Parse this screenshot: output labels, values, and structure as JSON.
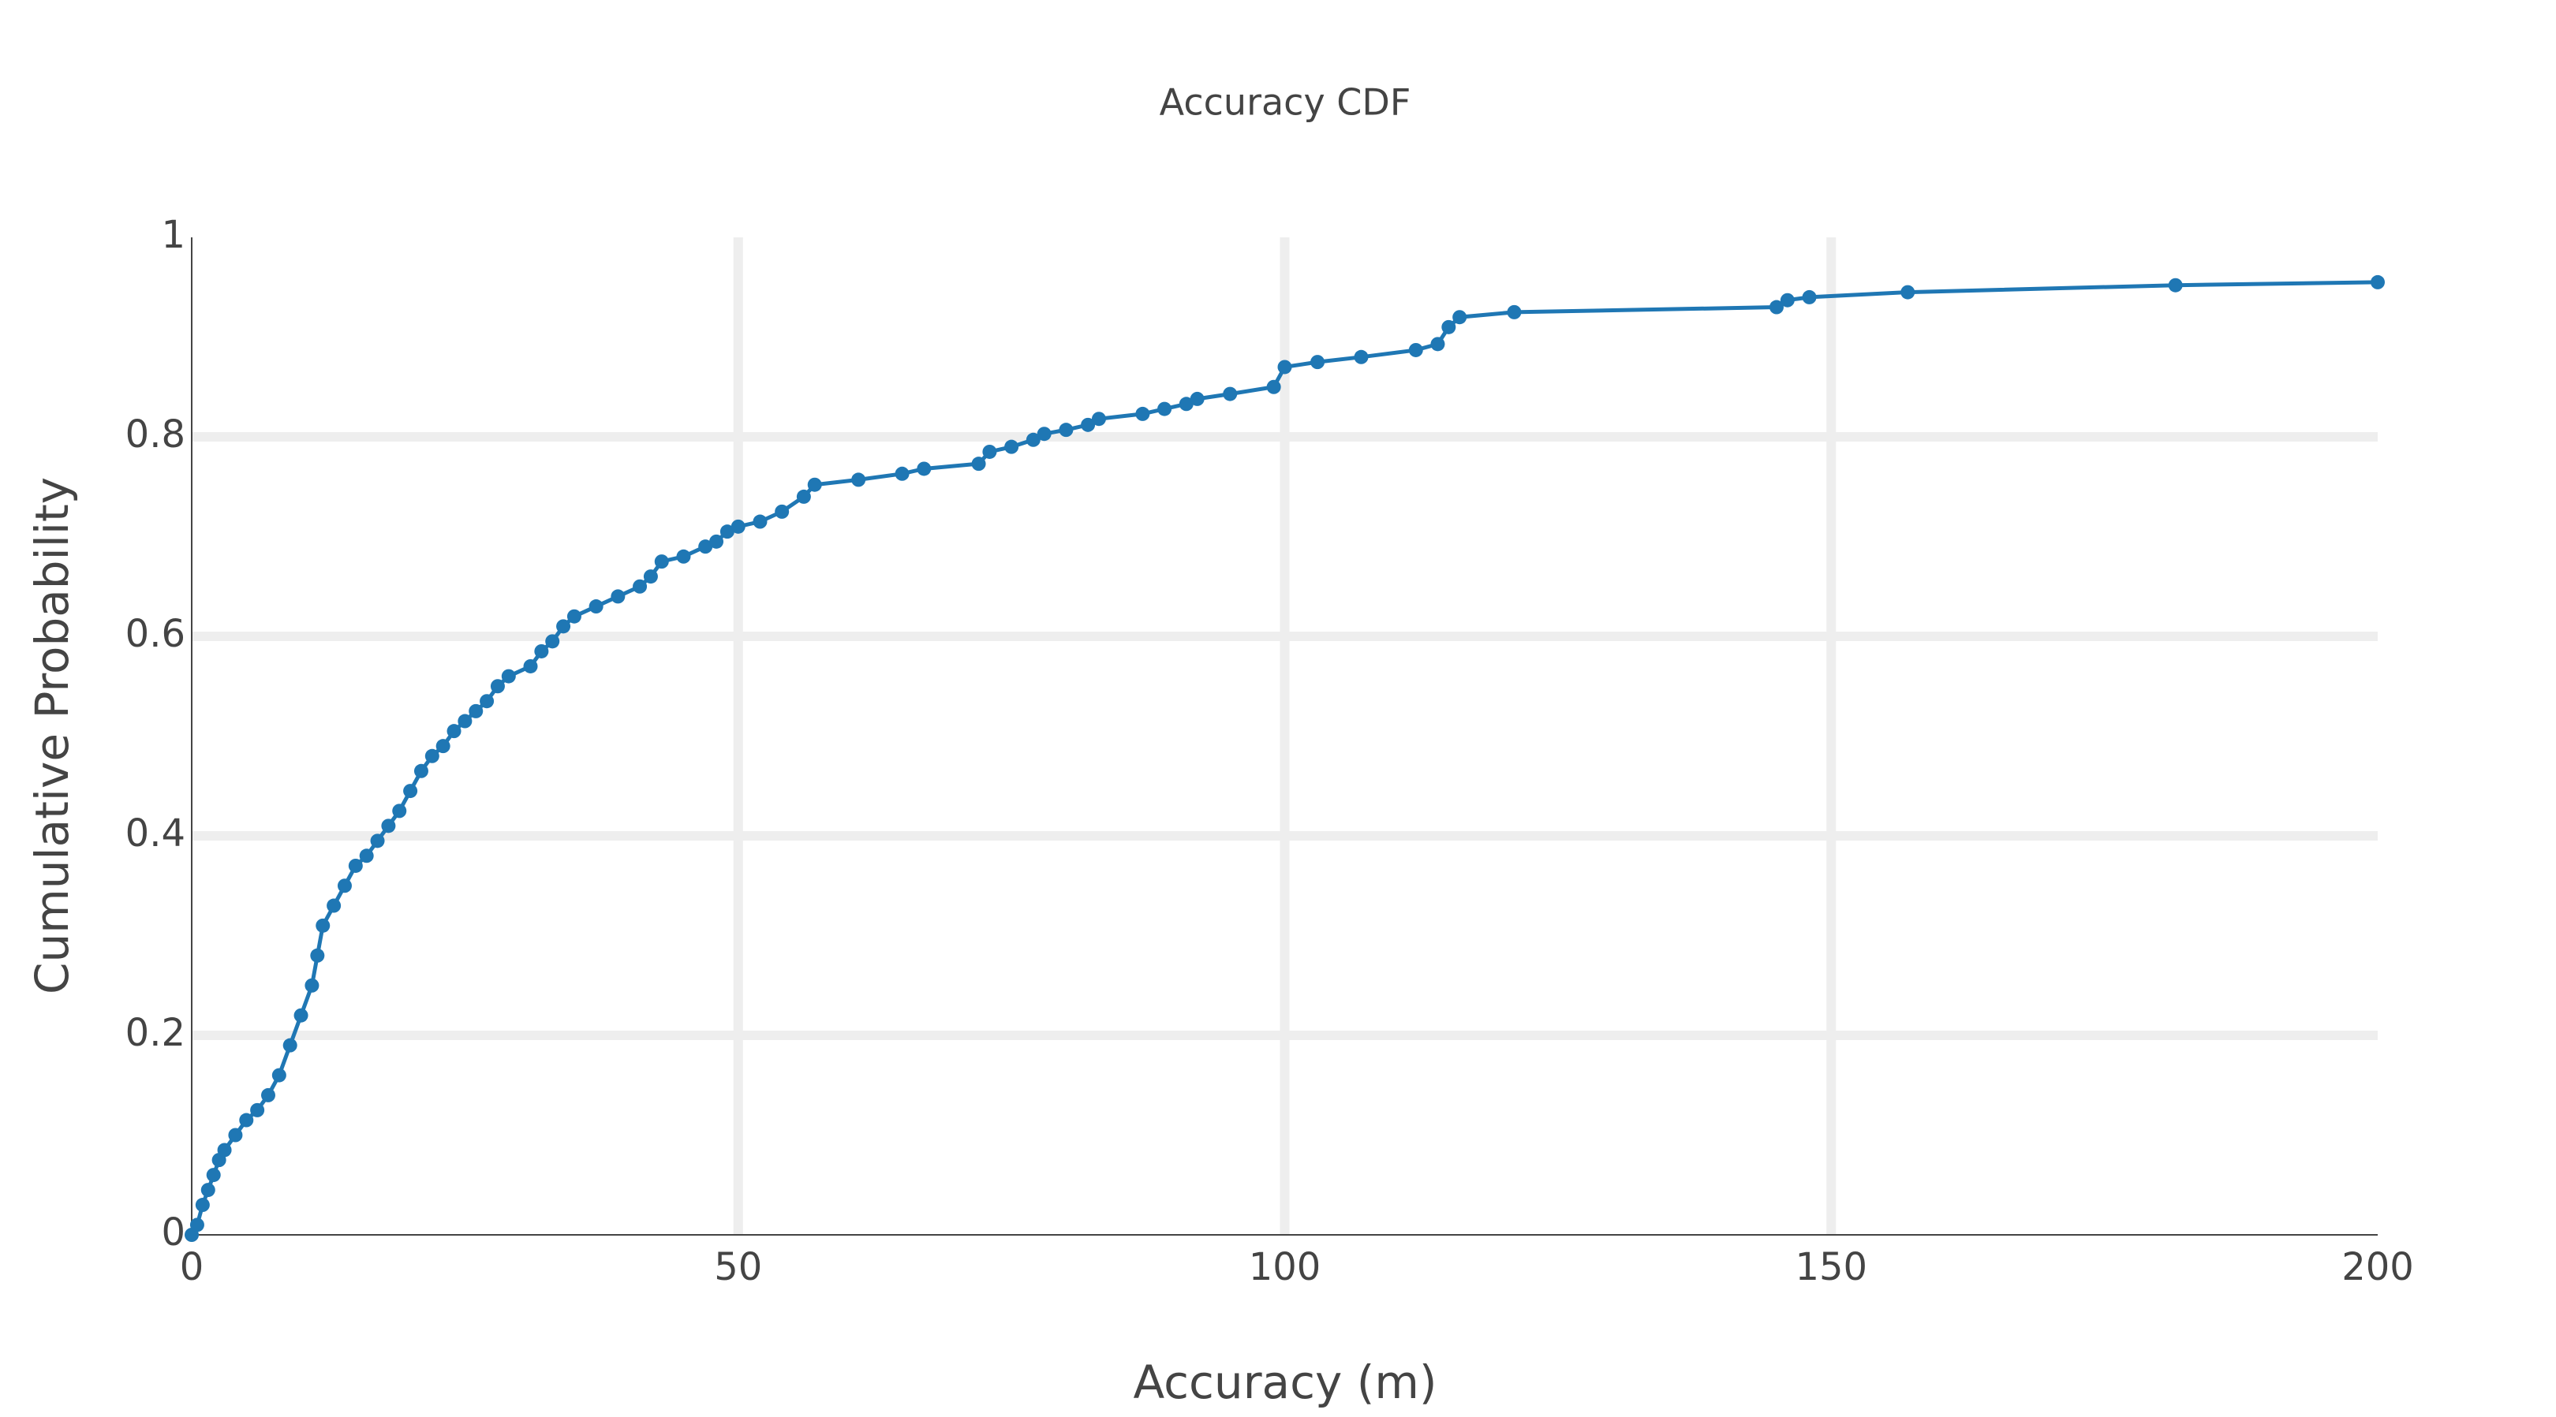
{
  "chart_data": {
    "type": "line",
    "title": "Accuracy CDF",
    "x_label": "Accuracy (m)",
    "y_label": "Cumulative Probability",
    "series": [
      {
        "color": "#1f77b4",
        "x": [
          0,
          0.5,
          1,
          1.5,
          2,
          2.5,
          3,
          4,
          5,
          6,
          7,
          8,
          9,
          10,
          11,
          11.5,
          12,
          13,
          14,
          15,
          16,
          17,
          18,
          19,
          20,
          21,
          22,
          23,
          24,
          25,
          26,
          27,
          28,
          29,
          31,
          32,
          33,
          34,
          35,
          37,
          39,
          41,
          42,
          43,
          45,
          47,
          48,
          49,
          50,
          52,
          54,
          56,
          57,
          61,
          65,
          67,
          72,
          73,
          75,
          77,
          78,
          80,
          82,
          83,
          87,
          89,
          91,
          92,
          95,
          99,
          100,
          103,
          107,
          112,
          114,
          115,
          116,
          121,
          145,
          146,
          148,
          157,
          181.5,
          200
        ],
        "values": [
          0,
          0.01,
          0.03,
          0.045,
          0.06,
          0.075,
          0.085,
          0.1,
          0.115,
          0.125,
          0.14,
          0.16,
          0.19,
          0.22,
          0.25,
          0.28,
          0.31,
          0.33,
          0.35,
          0.37,
          0.38,
          0.395,
          0.41,
          0.425,
          0.445,
          0.465,
          0.48,
          0.49,
          0.505,
          0.515,
          0.525,
          0.535,
          0.55,
          0.56,
          0.57,
          0.585,
          0.595,
          0.61,
          0.62,
          0.63,
          0.64,
          0.65,
          0.66,
          0.675,
          0.68,
          0.69,
          0.695,
          0.705,
          0.71,
          0.715,
          0.725,
          0.74,
          0.752,
          0.757,
          0.763,
          0.768,
          0.773,
          0.785,
          0.79,
          0.797,
          0.803,
          0.807,
          0.812,
          0.818,
          0.823,
          0.828,
          0.833,
          0.838,
          0.843,
          0.85,
          0.87,
          0.875,
          0.88,
          0.887,
          0.893,
          0.91,
          0.92,
          0.925,
          0.93,
          0.937,
          0.94,
          0.945,
          0.952,
          0.955
        ]
      }
    ],
    "xlim": [
      0,
      200
    ],
    "xticks": [
      0,
      50,
      100,
      150,
      200
    ],
    "ylim": [
      0,
      1
    ],
    "yticks": [
      0,
      0.2,
      0.4,
      0.6,
      0.8,
      1
    ],
    "grid": true
  }
}
